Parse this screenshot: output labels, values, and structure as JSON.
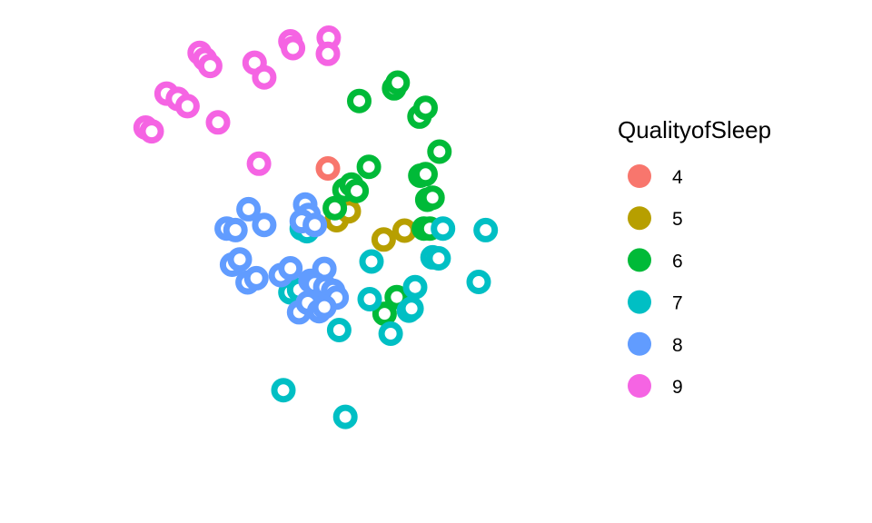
{
  "chart_data": {
    "type": "scatter",
    "title": "",
    "xlabel": "",
    "ylabel": "",
    "axes_visible": false,
    "grid": false,
    "legend": {
      "title": "QualityofSleep",
      "placement": "right",
      "entries": [
        {
          "label": "4",
          "color": "#F8766D"
        },
        {
          "label": "5",
          "color": "#B79F00"
        },
        {
          "label": "6",
          "color": "#00BA38"
        },
        {
          "label": "7",
          "color": "#00BFC4"
        },
        {
          "label": "8",
          "color": "#619CFF"
        },
        {
          "label": "9",
          "color": "#F564E3"
        }
      ]
    },
    "xlim": [
      0,
      100
    ],
    "ylim": [
      0,
      100
    ],
    "series": [
      {
        "name": "4",
        "points": [
          [
            37.6,
            67.8
          ]
        ]
      },
      {
        "name": "5",
        "points": [
          [
            38.6,
            57.9
          ],
          [
            40.0,
            59.6
          ],
          [
            44.0,
            54.2
          ],
          [
            46.4,
            55.9
          ]
        ]
      },
      {
        "name": "6",
        "points": [
          [
            41.2,
            80.7
          ],
          [
            45.2,
            83.1
          ],
          [
            45.6,
            84.2
          ],
          [
            48.1,
            77.7
          ],
          [
            48.8,
            79.4
          ],
          [
            50.4,
            71.0
          ],
          [
            42.3,
            68.1
          ],
          [
            39.5,
            63.7
          ],
          [
            40.3,
            64.7
          ],
          [
            40.9,
            63.5
          ],
          [
            38.4,
            60.2
          ],
          [
            48.2,
            66.4
          ],
          [
            48.8,
            66.7
          ],
          [
            49.0,
            61.8
          ],
          [
            49.6,
            62.2
          ],
          [
            48.6,
            56.3
          ],
          [
            49.3,
            56.3
          ],
          [
            45.5,
            43.2
          ],
          [
            44.1,
            40.0
          ]
        ]
      },
      {
        "name": "7",
        "points": [
          [
            50.8,
            56.3
          ],
          [
            55.7,
            56.0
          ],
          [
            49.6,
            50.8
          ],
          [
            50.3,
            50.6
          ],
          [
            54.9,
            46.1
          ],
          [
            42.6,
            50.0
          ],
          [
            47.6,
            45.1
          ],
          [
            46.9,
            40.6
          ],
          [
            47.2,
            41.0
          ],
          [
            42.4,
            42.8
          ],
          [
            44.8,
            36.2
          ],
          [
            38.9,
            36.9
          ],
          [
            32.5,
            25.4
          ],
          [
            39.6,
            20.3
          ],
          [
            34.6,
            56.3
          ],
          [
            35.2,
            55.8
          ],
          [
            33.3,
            44.1
          ],
          [
            34.3,
            44.6
          ]
        ]
      },
      {
        "name": "8",
        "points": [
          [
            28.5,
            60.0
          ],
          [
            26.0,
            56.3
          ],
          [
            27.0,
            56.0
          ],
          [
            30.3,
            57.0
          ],
          [
            26.6,
            49.4
          ],
          [
            27.5,
            50.4
          ],
          [
            28.4,
            46.0
          ],
          [
            29.4,
            46.8
          ],
          [
            35.0,
            60.9
          ],
          [
            35.4,
            58.9
          ],
          [
            34.6,
            57.7
          ],
          [
            36.1,
            57.0
          ],
          [
            37.2,
            48.6
          ],
          [
            32.2,
            47.4
          ],
          [
            33.3,
            48.7
          ],
          [
            35.6,
            46.3
          ],
          [
            36.1,
            45.7
          ],
          [
            37.3,
            45.1
          ],
          [
            38.2,
            44.4
          ],
          [
            38.6,
            43.1
          ],
          [
            34.3,
            40.3
          ],
          [
            35.3,
            42.1
          ],
          [
            36.6,
            40.5
          ],
          [
            37.2,
            41.3
          ]
        ]
      },
      {
        "name": "9",
        "points": [
          [
            22.9,
            89.9
          ],
          [
            23.5,
            88.7
          ],
          [
            24.1,
            87.4
          ],
          [
            29.2,
            88.0
          ],
          [
            30.3,
            85.2
          ],
          [
            33.3,
            92.1
          ],
          [
            33.6,
            90.8
          ],
          [
            37.7,
            92.8
          ],
          [
            37.6,
            89.7
          ],
          [
            19.1,
            82.1
          ],
          [
            20.4,
            81.1
          ],
          [
            21.5,
            79.7
          ],
          [
            16.7,
            75.6
          ],
          [
            17.4,
            74.9
          ],
          [
            25.0,
            76.6
          ],
          [
            29.7,
            68.7
          ]
        ]
      }
    ]
  }
}
